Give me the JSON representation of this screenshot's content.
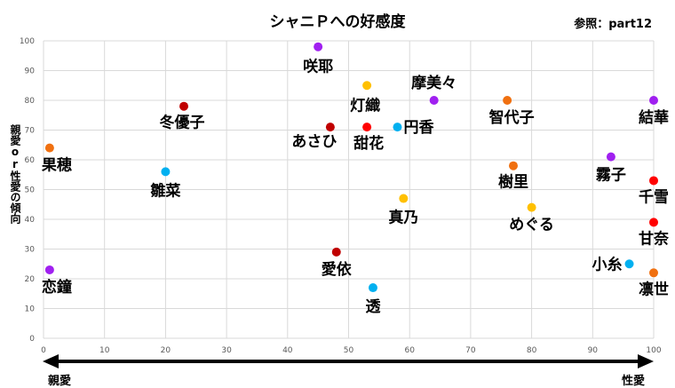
{
  "chart_data": {
    "type": "scatter",
    "title": "シャニＰへの好感度",
    "reference": "参照：part12",
    "ylabel": "親愛or性愛の傾向",
    "xlabel": "",
    "xlim": [
      0,
      100
    ],
    "ylim": [
      0,
      100
    ],
    "x_ticks": [
      0,
      10,
      20,
      30,
      40,
      50,
      60,
      70,
      80,
      90,
      100
    ],
    "y_ticks": [
      0,
      10,
      20,
      30,
      40,
      50,
      60,
      70,
      80,
      90,
      100
    ],
    "grid": true,
    "arrow_left_label": "親愛",
    "arrow_right_label": "性愛",
    "points": [
      {
        "label": "咲耶",
        "x": 45,
        "y": 98,
        "color": "#a020f0"
      },
      {
        "label": "灯織",
        "x": 53,
        "y": 85,
        "color": "#ffc000"
      },
      {
        "label": "摩美々",
        "x": 64,
        "y": 80,
        "color": "#a020f0"
      },
      {
        "label": "智代子",
        "x": 76,
        "y": 80,
        "color": "#f07010"
      },
      {
        "label": "結華",
        "x": 100,
        "y": 80,
        "color": "#a020f0"
      },
      {
        "label": "冬優子",
        "x": 23,
        "y": 78,
        "color": "#c00000"
      },
      {
        "label": "あさひ",
        "x": 47,
        "y": 71,
        "color": "#c00000"
      },
      {
        "label": "甜花",
        "x": 53,
        "y": 71,
        "color": "#ff0000"
      },
      {
        "label": "円香",
        "x": 58,
        "y": 71,
        "color": "#00b0f0"
      },
      {
        "label": "果穂",
        "x": 1,
        "y": 64,
        "color": "#f07010"
      },
      {
        "label": "霧子",
        "x": 93,
        "y": 61,
        "color": "#a020f0"
      },
      {
        "label": "樹里",
        "x": 77,
        "y": 58,
        "color": "#f07010"
      },
      {
        "label": "雛菜",
        "x": 20,
        "y": 56,
        "color": "#00b0f0"
      },
      {
        "label": "千雪",
        "x": 100,
        "y": 53,
        "color": "#ff0000"
      },
      {
        "label": "真乃",
        "x": 59,
        "y": 47,
        "color": "#ffc000"
      },
      {
        "label": "めぐる",
        "x": 80,
        "y": 44,
        "color": "#ffc000"
      },
      {
        "label": "甘奈",
        "x": 100,
        "y": 39,
        "color": "#ff0000"
      },
      {
        "label": "愛依",
        "x": 48,
        "y": 29,
        "color": "#c00000"
      },
      {
        "label": "小糸",
        "x": 96,
        "y": 25,
        "color": "#00b0f0"
      },
      {
        "label": "恋鐘",
        "x": 1,
        "y": 23,
        "color": "#a020f0"
      },
      {
        "label": "凛世",
        "x": 100,
        "y": 22,
        "color": "#f07010"
      },
      {
        "label": "透",
        "x": 54,
        "y": 17,
        "color": "#00b0f0"
      }
    ]
  }
}
